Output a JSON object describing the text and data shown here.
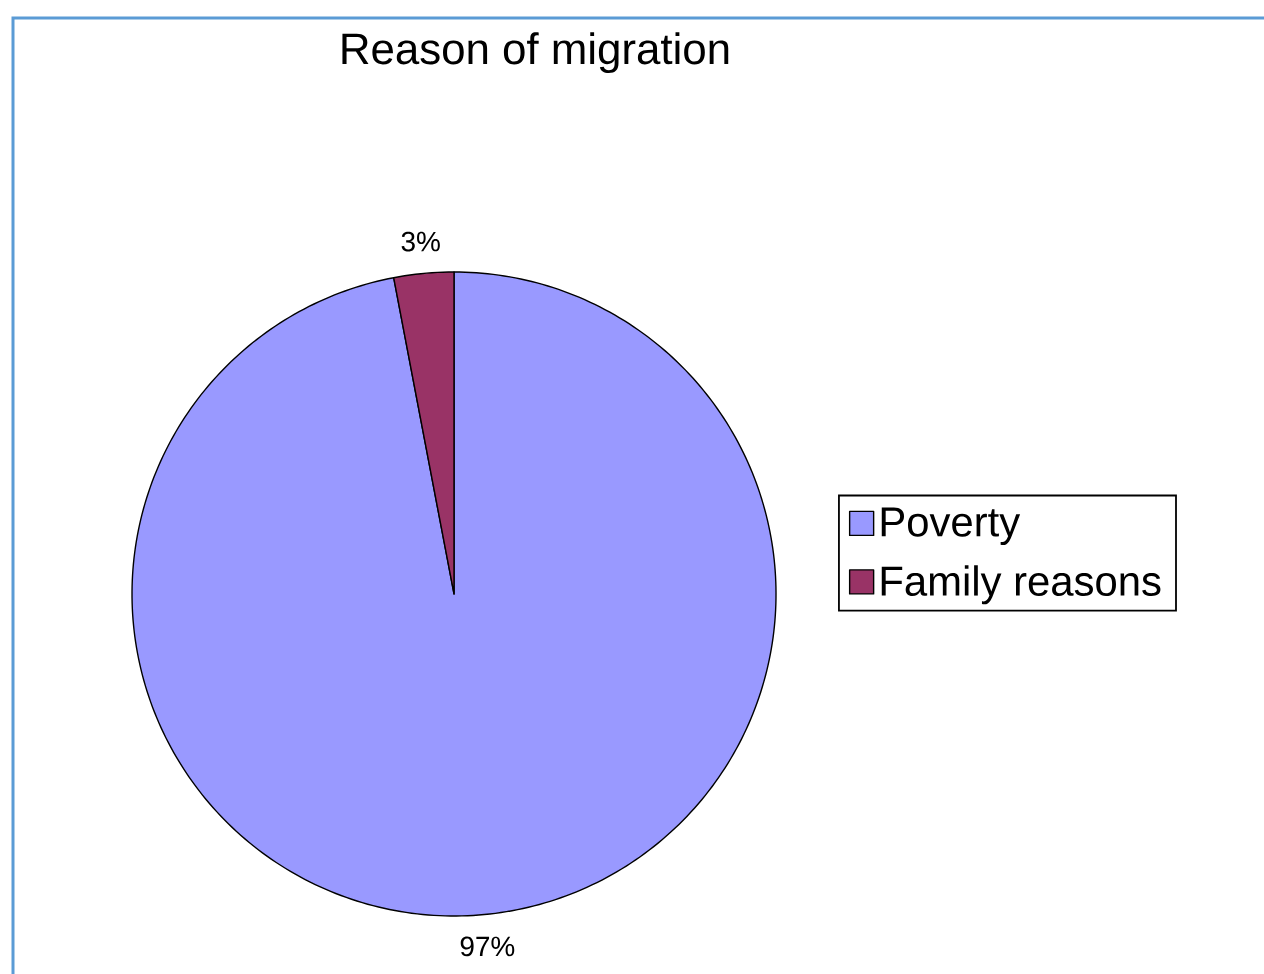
{
  "chart_data": {
    "type": "pie",
    "title": "Reason of migration",
    "categories": [
      "Poverty",
      "Family reasons"
    ],
    "values": [
      97,
      3
    ],
    "colors": [
      "#9999ff",
      "#993366"
    ],
    "value_labels": [
      "97%",
      "3%"
    ],
    "legend": "right"
  }
}
